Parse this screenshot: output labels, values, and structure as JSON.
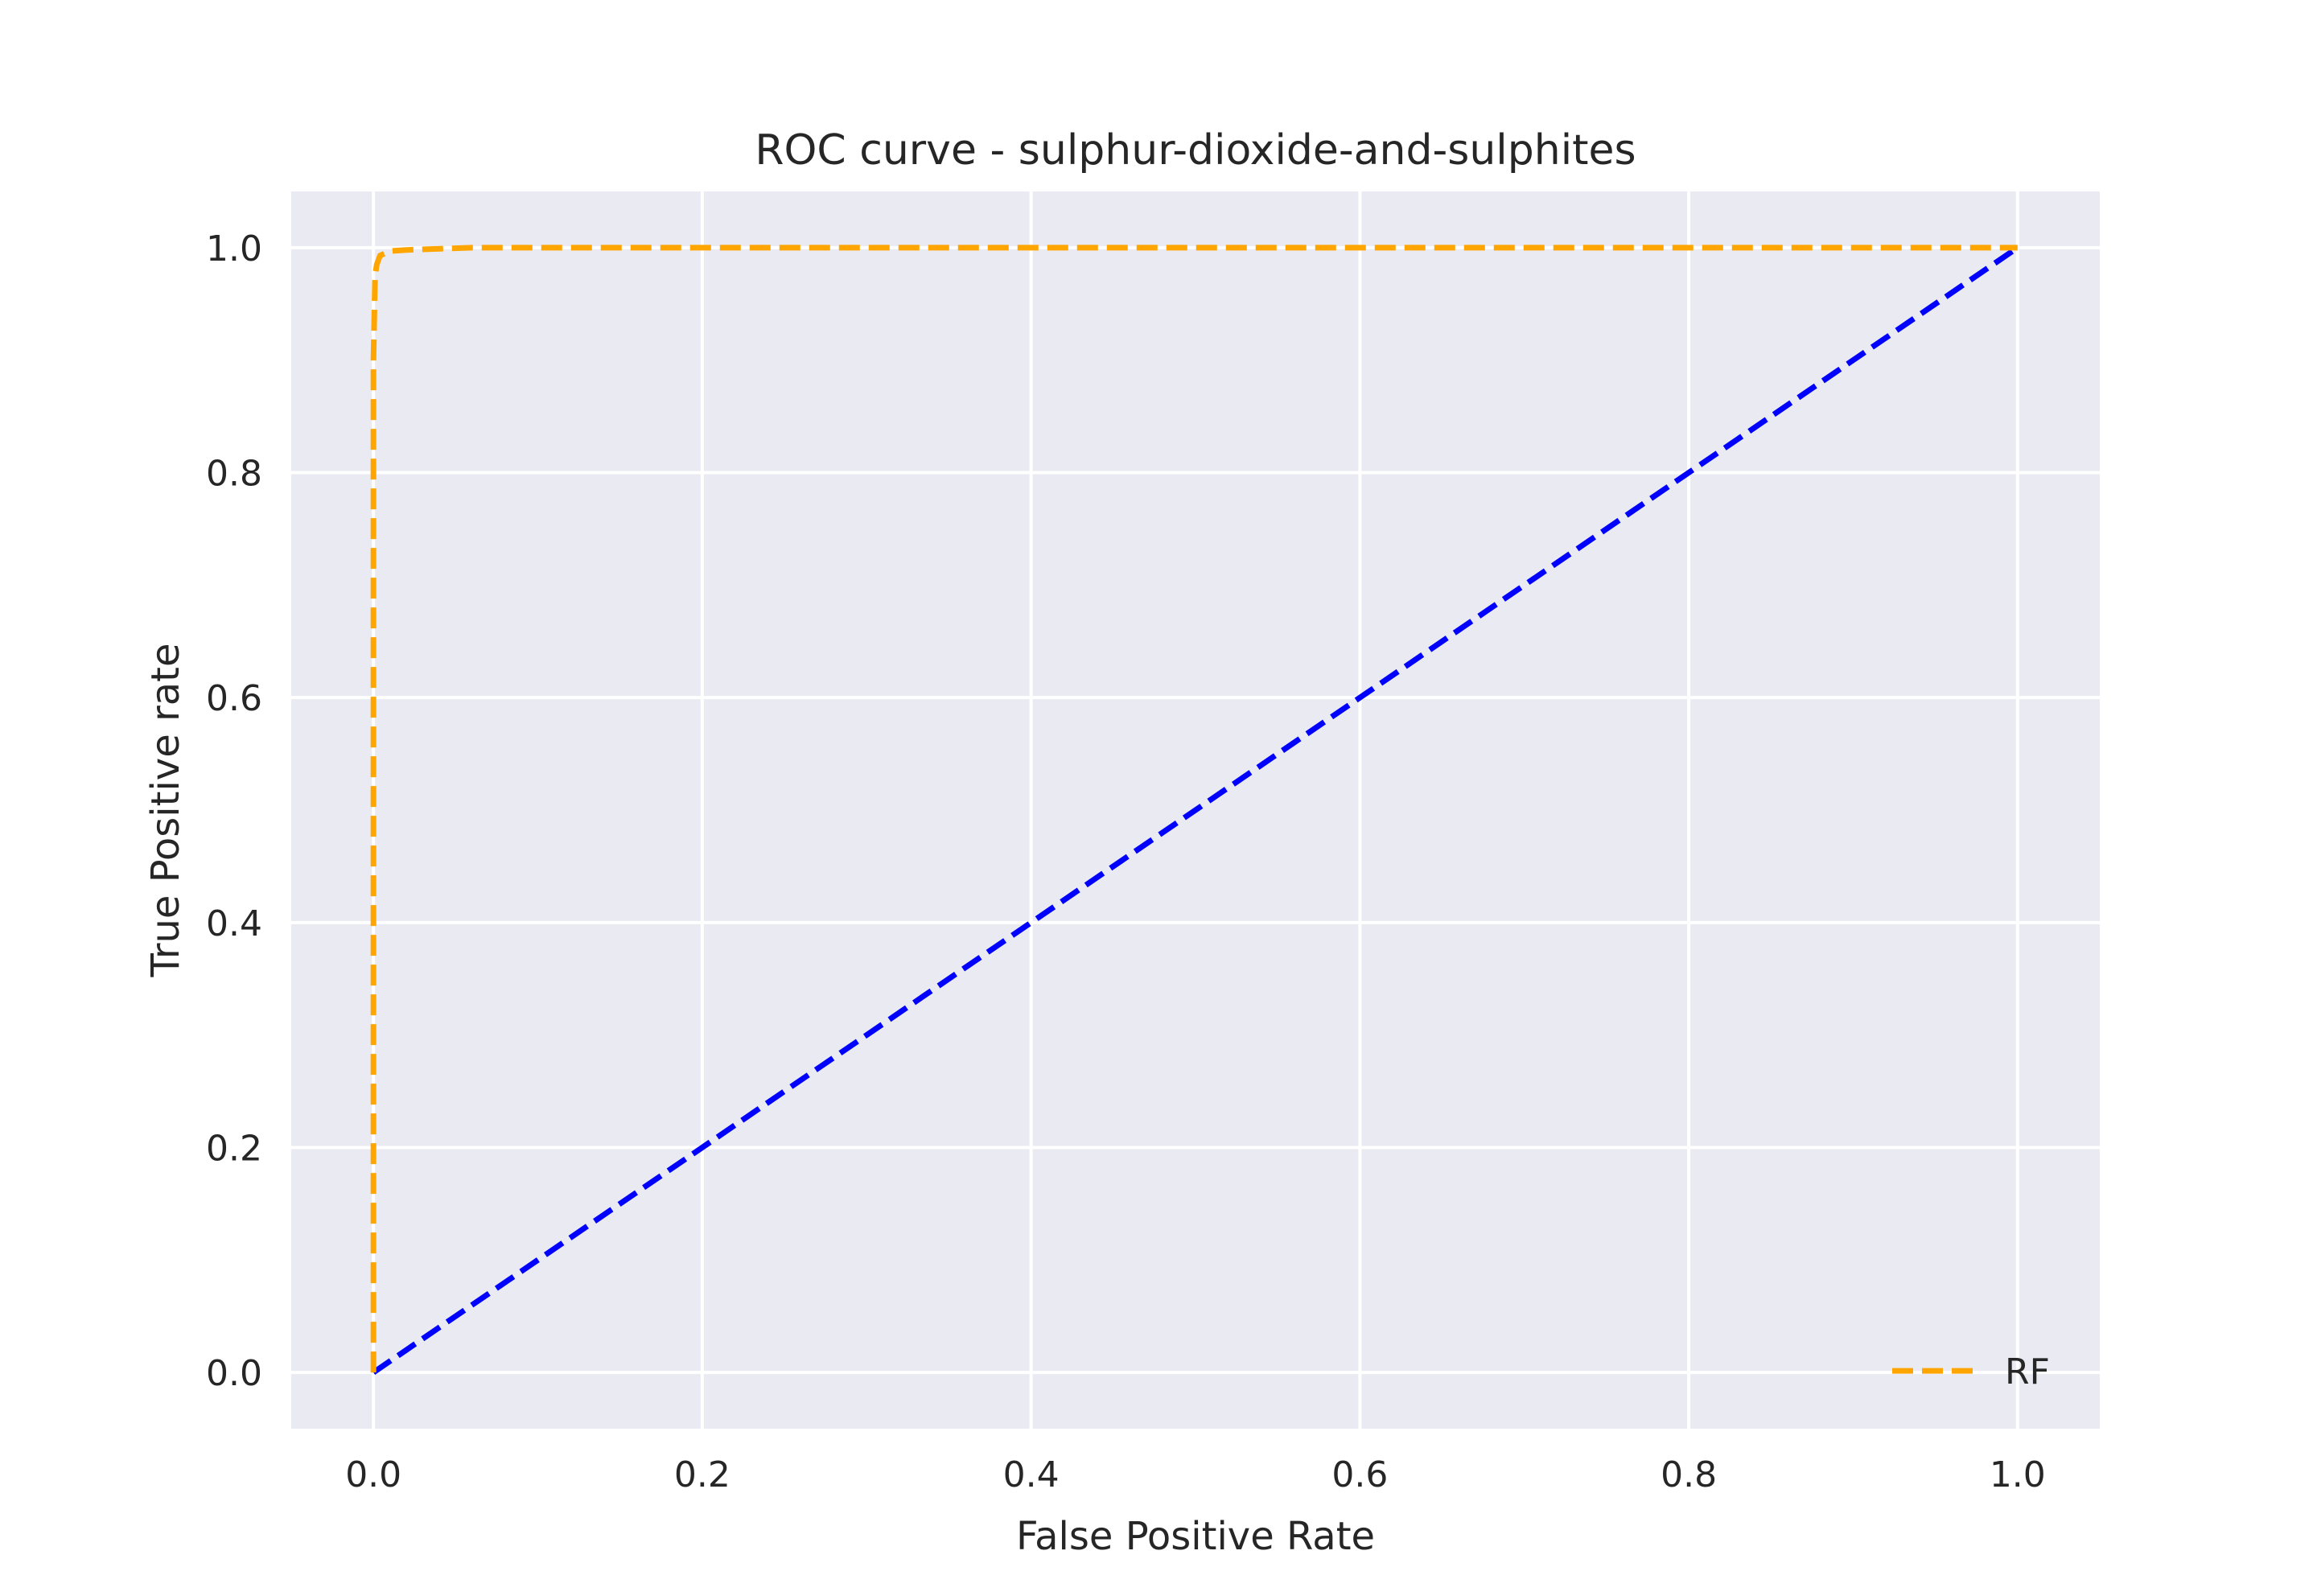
{
  "chart_data": {
    "type": "line",
    "title": "ROC curve - sulphur-dioxide-and-sulphites",
    "xlabel": "False Positive Rate",
    "ylabel": "True Positive rate",
    "xlim": [
      -0.05,
      1.05
    ],
    "ylim": [
      -0.05,
      1.05
    ],
    "xticks": [
      0.0,
      0.2,
      0.4,
      0.6,
      0.8,
      1.0
    ],
    "xtick_labels": [
      "0.0",
      "0.2",
      "0.4",
      "0.6",
      "0.8",
      "1.0"
    ],
    "yticks": [
      0.0,
      0.2,
      0.4,
      0.6,
      0.8,
      1.0
    ],
    "ytick_labels": [
      "0.0",
      "0.2",
      "0.4",
      "0.6",
      "0.8",
      "1.0"
    ],
    "grid": true,
    "background_color": "#eaeaf2",
    "grid_color": "#ffffff",
    "legend_position": "lower-right",
    "series": [
      {
        "name": "RF",
        "color": "#ffa500",
        "line_style": "dashed",
        "x": [
          0.0,
          0.0,
          0.001,
          0.002,
          0.004,
          0.01,
          0.02,
          0.04,
          0.06,
          0.1,
          0.3,
          0.6,
          1.0
        ],
        "y": [
          0.0,
          0.9,
          0.975,
          0.985,
          0.993,
          0.997,
          0.998,
          0.999,
          1.0,
          1.0,
          1.0,
          1.0,
          1.0
        ]
      },
      {
        "color": "#0000ff",
        "line_style": "dashed",
        "x": [
          0.0,
          1.0
        ],
        "y": [
          0.0,
          1.0
        ]
      }
    ]
  }
}
